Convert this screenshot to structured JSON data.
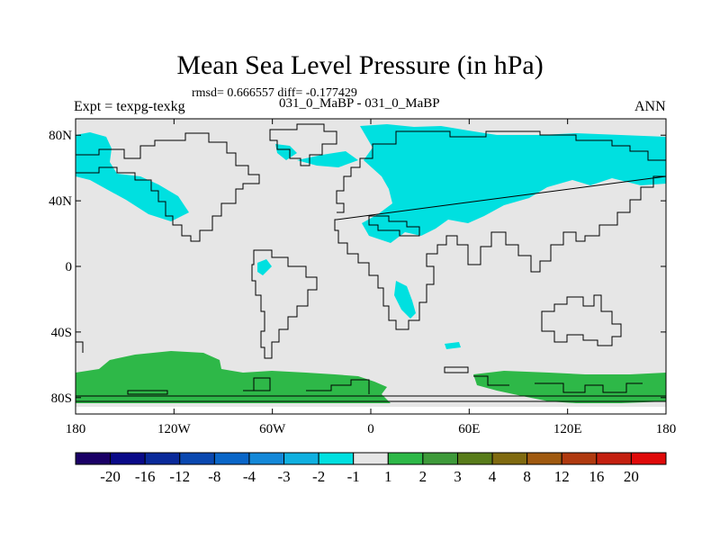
{
  "title": "Mean Sea Level Pressure (in hPa)",
  "stats": "rmsd= 0.666557 diff= -0.177429",
  "left_label": "Expt = texpg-texkg",
  "center_label": "031_0_MaBP - 031_0_MaBP",
  "right_label": "ANN",
  "map": {
    "lon_ticks": [
      "180",
      "120W",
      "60W",
      "0",
      "60E",
      "120E",
      "180"
    ],
    "lat_ticks": [
      "80N",
      "40N",
      "0",
      "40S",
      "80S"
    ],
    "background_color": "#e6e6e6",
    "negative_anomaly_color": "#00e0e0",
    "positive_anomaly_color": "#2eb848"
  },
  "colorbar": {
    "levels": [
      "-20",
      "-16",
      "-12",
      "-8",
      "-4",
      "-3",
      "-2",
      "-1",
      "1",
      "2",
      "3",
      "4",
      "8",
      "12",
      "16",
      "20"
    ],
    "colors": [
      "#1a0066",
      "#0a0a88",
      "#0a2a9a",
      "#0a48b0",
      "#0a66c8",
      "#1488d8",
      "#10b0e0",
      "#00e0e0",
      "#e6e6e6",
      "#2eb848",
      "#3e9a3a",
      "#587c1a",
      "#806a10",
      "#a05a10",
      "#b03a10",
      "#c42010",
      "#e00a0a"
    ]
  }
}
